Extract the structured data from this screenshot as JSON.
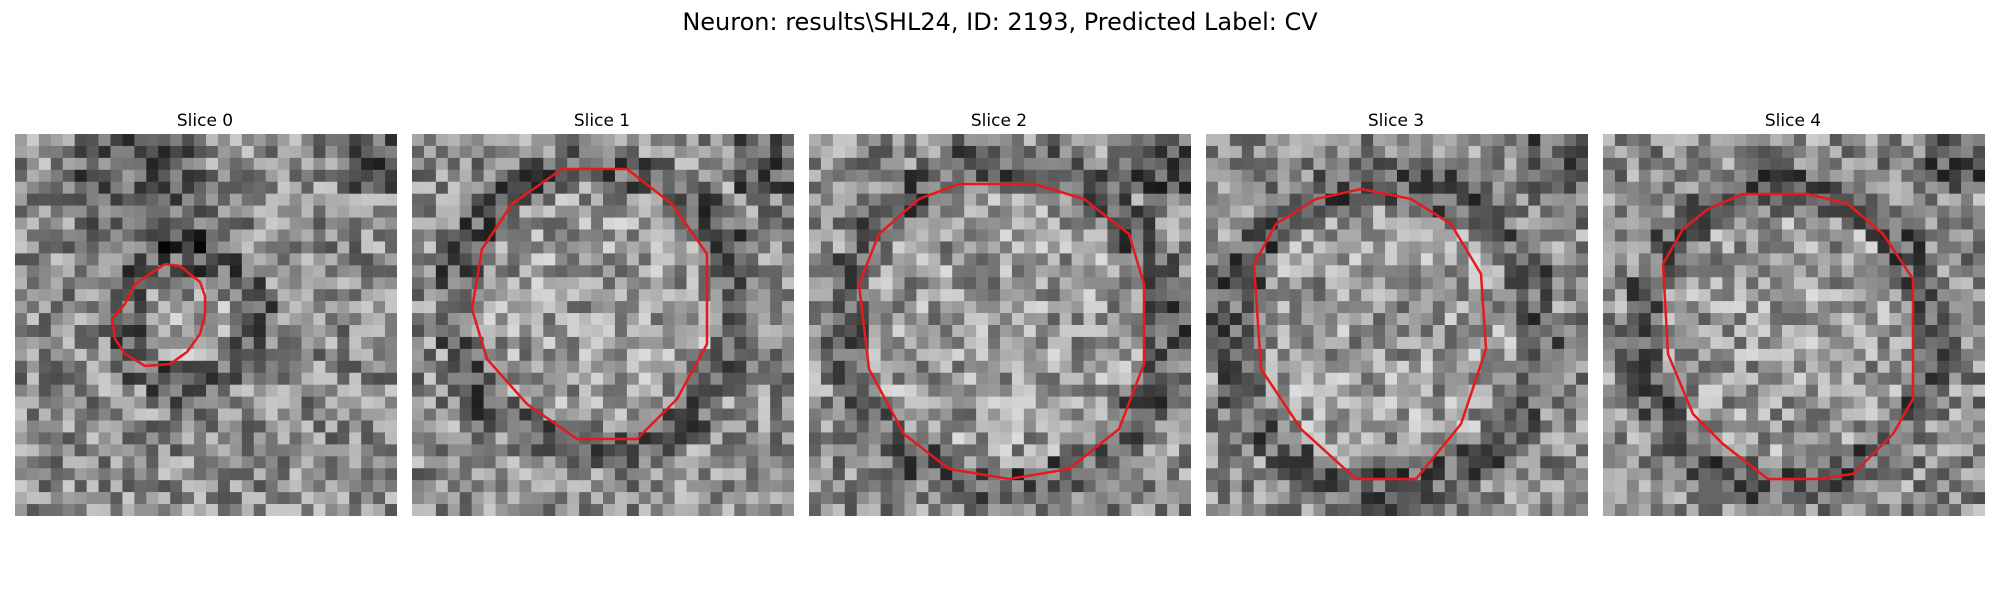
{
  "figure": {
    "title": "Neuron: results\\SHL24, ID: 2193, Predicted Label: CV"
  },
  "panels": [
    {
      "title": "Slice 0"
    },
    {
      "title": "Slice 1"
    },
    {
      "title": "Slice 2"
    },
    {
      "title": "Slice 3"
    },
    {
      "title": "Slice 4"
    }
  ],
  "colors": {
    "contour": "#e41a1c",
    "background": "#ffffff"
  }
}
